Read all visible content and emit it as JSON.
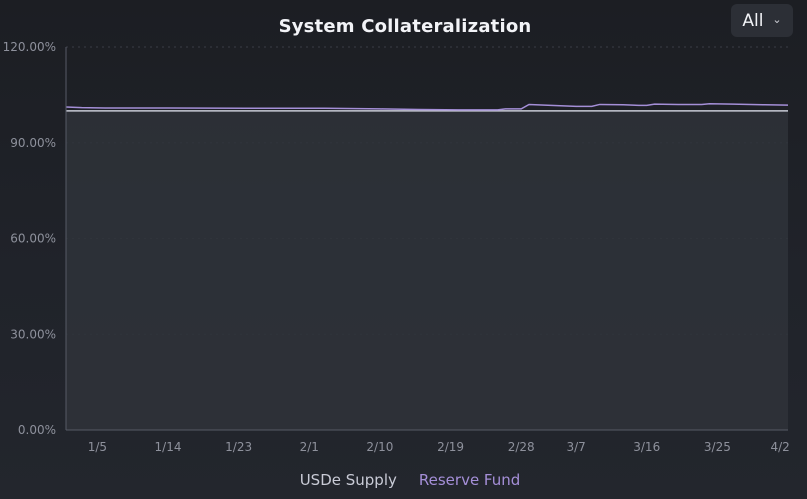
{
  "chart_data": {
    "type": "area",
    "title": "System Collateralization",
    "xlabel": "",
    "ylabel": "",
    "range_selector": {
      "selected": "All"
    },
    "y_ticks": [
      "0.00%",
      "30.00%",
      "60.00%",
      "90.00%",
      "120.00%"
    ],
    "ylim": [
      0,
      120
    ],
    "x_ticks": [
      "1/5",
      "1/14",
      "1/23",
      "2/1",
      "2/10",
      "2/19",
      "2/28",
      "3/7",
      "3/16",
      "3/25",
      "4/2"
    ],
    "x_tick_positions": [
      1,
      10,
      19,
      28,
      37,
      46,
      55,
      62,
      71,
      80,
      88
    ],
    "xlim": [
      -3,
      89
    ],
    "grid": true,
    "legend_position": "bottom-center",
    "series": [
      {
        "name": "USDe Supply",
        "color": "#c9cbd6",
        "fill": "#2f323a",
        "type": "area",
        "x": [
          -3,
          89
        ],
        "values": [
          100,
          100
        ]
      },
      {
        "name": "Reserve Fund",
        "color": "#a58fd8",
        "type": "line",
        "x": [
          -3,
          -1,
          2,
          10,
          20,
          30,
          37,
          42,
          47,
          52,
          53,
          55,
          56,
          60,
          62,
          64,
          65,
          68,
          70,
          71,
          72,
          75,
          78,
          79,
          82,
          86,
          89
        ],
        "values": [
          101.2,
          101.0,
          100.9,
          100.9,
          100.8,
          100.8,
          100.6,
          100.4,
          100.3,
          100.3,
          100.6,
          100.6,
          102.0,
          101.6,
          101.4,
          101.4,
          102.0,
          101.9,
          101.7,
          101.7,
          102.1,
          102.0,
          102.0,
          102.2,
          102.1,
          101.9,
          101.8
        ]
      }
    ]
  }
}
